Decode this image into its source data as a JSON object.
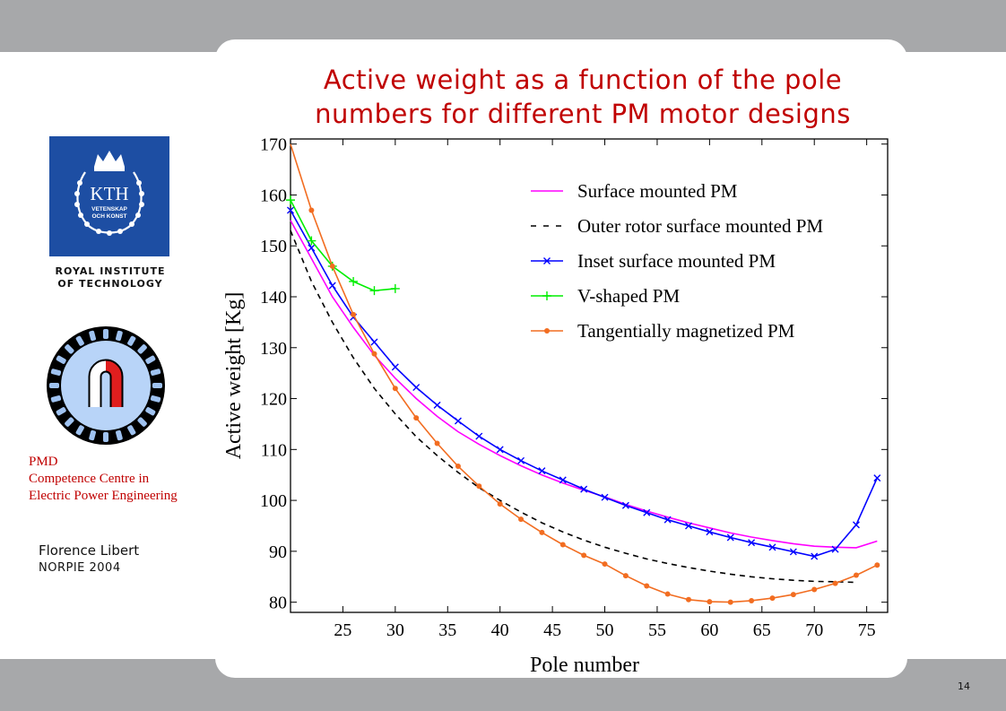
{
  "slide": {
    "title_line1": "Active weight as a function of the pole",
    "title_line2": "numbers for different PM motor designs",
    "author": "Florence Libert",
    "conference": "NORPIE 2004",
    "page_number": "14",
    "band_color": "#a7a8aa",
    "title_color": "#c00000"
  },
  "kth_logo": {
    "wordmark": "KTH",
    "ring_text_line1": "VETENSKAP",
    "ring_text_line2": "OCH KONST",
    "caption_line1": "ROYAL INSTITUTE",
    "caption_line2": "OF TECHNOLOGY",
    "color": "#1d4ea3"
  },
  "pmd": {
    "line1": "PMD",
    "line2": "Competence Centre in",
    "line3": "Electric Power Engineering"
  },
  "chart_data": {
    "type": "line",
    "xlabel": "Pole number",
    "ylabel": "Active weight [Kg]",
    "xlim": [
      20,
      77
    ],
    "ylim": [
      78,
      171
    ],
    "xticks": [
      25,
      30,
      35,
      40,
      45,
      50,
      55,
      60,
      65,
      70,
      75
    ],
    "yticks": [
      80,
      90,
      100,
      110,
      120,
      130,
      140,
      150,
      160,
      170
    ],
    "grid": false,
    "legend_position": "top-right",
    "series": [
      {
        "name": "Surface mounted PM",
        "color": "#ff00ff",
        "style": "solid",
        "marker": "none",
        "x": [
          20,
          22,
          24,
          26,
          28,
          30,
          32,
          34,
          36,
          38,
          40,
          42,
          44,
          46,
          48,
          50,
          52,
          54,
          56,
          58,
          60,
          62,
          64,
          66,
          68,
          70,
          72,
          74,
          76
        ],
        "y": [
          155,
          147.5,
          140,
          134,
          128.5,
          124,
          120,
          116.5,
          113.5,
          111,
          108.8,
          106.8,
          105,
          103.4,
          102,
          100.7,
          99.2,
          97.9,
          96.7,
          95.6,
          94.6,
          93.6,
          92.8,
          92.1,
          91.5,
          91,
          90.8,
          90.7,
          92
        ]
      },
      {
        "name": "Outer rotor surface mounted PM",
        "color": "#000000",
        "style": "dashed",
        "marker": "none",
        "x": [
          20,
          22,
          24,
          26,
          28,
          30,
          32,
          34,
          36,
          38,
          40,
          42,
          44,
          46,
          48,
          50,
          52,
          54,
          56,
          58,
          60,
          62,
          64,
          66,
          68,
          70,
          72,
          74
        ],
        "y": [
          153,
          143,
          135,
          128,
          122,
          117,
          112.5,
          108.8,
          105.5,
          102.5,
          100,
          97.7,
          95.6,
          93.8,
          92.2,
          90.8,
          89.6,
          88.5,
          87.6,
          86.8,
          86.1,
          85.5,
          85,
          84.6,
          84.3,
          84.1,
          84,
          83.9
        ]
      },
      {
        "name": "Inset surface mounted PM",
        "color": "#0000ff",
        "style": "solid",
        "marker": "x",
        "x": [
          20,
          22,
          24,
          26,
          28,
          30,
          32,
          34,
          36,
          38,
          40,
          42,
          44,
          46,
          48,
          50,
          52,
          54,
          56,
          58,
          60,
          62,
          64,
          66,
          68,
          70,
          72,
          74,
          76
        ],
        "y": [
          157,
          149.6,
          142.2,
          136,
          131.1,
          126.2,
          122.2,
          118.7,
          115.6,
          112.6,
          110,
          107.8,
          105.8,
          104,
          102.2,
          100.6,
          99,
          97.6,
          96.2,
          95,
          93.8,
          92.7,
          91.7,
          90.8,
          89.9,
          89,
          90.4,
          95.2,
          104.4
        ]
      },
      {
        "name": "V-shaped PM",
        "color": "#00ee00",
        "style": "solid",
        "marker": "+",
        "x": [
          20,
          22,
          24,
          26,
          28,
          30
        ],
        "y": [
          159,
          151,
          146,
          143,
          141.2,
          141.6
        ]
      },
      {
        "name": "Tangentially magnetized PM",
        "color": "#f26d21",
        "style": "solid",
        "marker": "o",
        "x": [
          20,
          22,
          24,
          26,
          28,
          30,
          32,
          34,
          36,
          38,
          40,
          42,
          44,
          46,
          48,
          50,
          52,
          54,
          56,
          58,
          60,
          62,
          64,
          66,
          68,
          70,
          72,
          74,
          76
        ],
        "y": [
          170,
          157,
          146,
          136.5,
          128.8,
          122,
          116.2,
          111.2,
          106.7,
          102.8,
          99.3,
          96.3,
          93.7,
          91.3,
          89.2,
          87.5,
          85.2,
          83.2,
          81.6,
          80.5,
          80.1,
          80,
          80.3,
          80.8,
          81.5,
          82.5,
          83.7,
          85.3,
          87.3
        ]
      }
    ]
  }
}
